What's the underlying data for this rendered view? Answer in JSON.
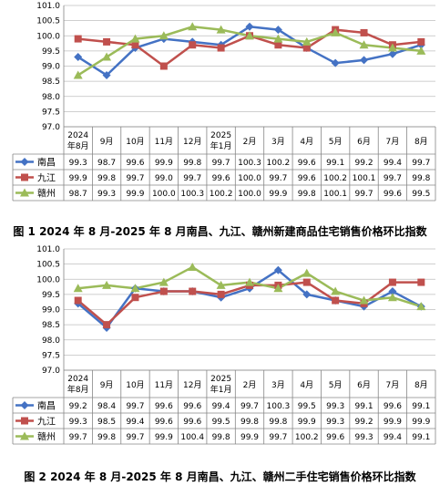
{
  "chart_data": [
    {
      "type": "line",
      "title": "图 1 2024 年 8 月-2025 年 8 月南昌、九江、赣州新建商品住宅销售价格环比指数",
      "categories": [
        [
          "2024",
          "年8月"
        ],
        [
          "9月"
        ],
        [
          "10月"
        ],
        [
          "11月"
        ],
        [
          "12月"
        ],
        [
          "2025",
          "年1月"
        ],
        [
          "2月"
        ],
        [
          "3月"
        ],
        [
          "4月"
        ],
        [
          "5月"
        ],
        [
          "6月"
        ],
        [
          "7月"
        ],
        [
          "8月"
        ]
      ],
      "ylim": [
        97.0,
        101.0
      ],
      "yticks": [
        "97.0",
        "97.5",
        "98.0",
        "98.5",
        "99.0",
        "99.5",
        "100.0",
        "100.5",
        "101.0"
      ],
      "grid": true,
      "legend": "data-table",
      "series": [
        {
          "name": "南昌",
          "color": "#4472c4",
          "marker": "diamond",
          "values": [
            "99.3",
            "98.7",
            "99.6",
            "99.9",
            "99.8",
            "99.7",
            "100.3",
            "100.2",
            "99.6",
            "99.1",
            "99.2",
            "99.4",
            "99.7"
          ]
        },
        {
          "name": "九江",
          "color": "#c0504d",
          "marker": "square",
          "values": [
            "99.9",
            "99.8",
            "99.7",
            "99.0",
            "99.7",
            "99.6",
            "100.0",
            "99.7",
            "99.6",
            "100.2",
            "100.1",
            "99.7",
            "99.8"
          ]
        },
        {
          "name": "赣州",
          "color": "#9bbb59",
          "marker": "triangle",
          "values": [
            "98.7",
            "99.3",
            "99.9",
            "100.0",
            "100.3",
            "100.2",
            "100.0",
            "99.9",
            "99.8",
            "100.1",
            "99.7",
            "99.6",
            "99.5"
          ]
        }
      ]
    },
    {
      "type": "line",
      "title": "图 2 2024 年 8 月-2025 年 8 月南昌、九江、赣州二手住宅销售价格环比指数",
      "categories": [
        [
          "2024",
          "年8月"
        ],
        [
          "9月"
        ],
        [
          "10月"
        ],
        [
          "11月"
        ],
        [
          "12月"
        ],
        [
          "2025",
          "年1月"
        ],
        [
          "2月"
        ],
        [
          "3月"
        ],
        [
          "4月"
        ],
        [
          "5月"
        ],
        [
          "6月"
        ],
        [
          "7月"
        ],
        [
          "8月"
        ]
      ],
      "ylim": [
        97.0,
        101.0
      ],
      "yticks": [
        "97.0",
        "97.5",
        "98.0",
        "98.5",
        "99.0",
        "99.5",
        "100.0",
        "100.5",
        "101.0"
      ],
      "grid": true,
      "legend": "data-table",
      "series": [
        {
          "name": "南昌",
          "color": "#4472c4",
          "marker": "diamond",
          "values": [
            "99.2",
            "98.4",
            "99.7",
            "99.6",
            "99.6",
            "99.4",
            "99.7",
            "100.3",
            "99.5",
            "99.3",
            "99.1",
            "99.6",
            "99.1"
          ]
        },
        {
          "name": "九江",
          "color": "#c0504d",
          "marker": "square",
          "values": [
            "99.3",
            "98.5",
            "99.4",
            "99.6",
            "99.6",
            "99.5",
            "99.8",
            "99.8",
            "99.9",
            "99.3",
            "99.2",
            "99.9",
            "99.9"
          ]
        },
        {
          "name": "赣州",
          "color": "#9bbb59",
          "marker": "triangle",
          "values": [
            "99.7",
            "99.8",
            "99.7",
            "99.9",
            "100.4",
            "99.8",
            "99.9",
            "99.7",
            "100.2",
            "99.6",
            "99.3",
            "99.4",
            "99.1"
          ]
        }
      ]
    }
  ]
}
